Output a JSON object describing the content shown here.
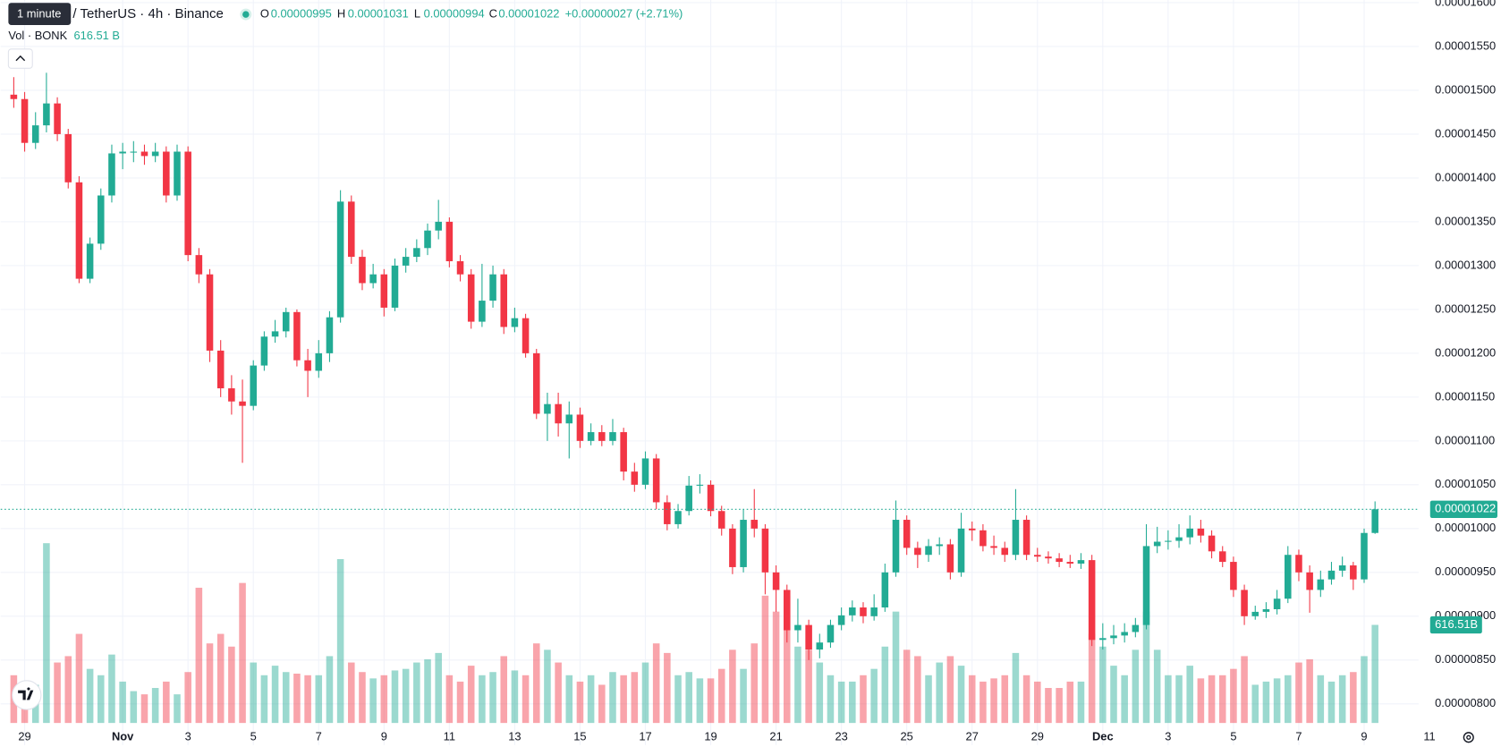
{
  "chart_data": {
    "type": "candlestick",
    "title": "/ TetherUS · 4h · Binance",
    "tooltip": "1 minute",
    "ohlc_labels": [
      "O",
      "H",
      "L",
      "C"
    ],
    "change": "+0.00000027 (+2.71%)",
    "volume_title": "Vol · BONK",
    "volume_legend_label": "616.51 B",
    "volume_axis_label": "616.51B",
    "up_color": "#22ab94",
    "down_color": "#f23645",
    "grid": true,
    "xlim": [
      -1.2,
      129
    ],
    "ylim": [
      7.53e-06,
      1.603e-05
    ],
    "xticks": [
      {
        "value": 1,
        "label": "29"
      },
      {
        "value": 10,
        "label": "Nov"
      },
      {
        "value": 16,
        "label": "3"
      },
      {
        "value": 22,
        "label": "5"
      },
      {
        "value": 28,
        "label": "7"
      },
      {
        "value": 34,
        "label": "9"
      },
      {
        "value": 40,
        "label": "11"
      },
      {
        "value": 46,
        "label": "13"
      },
      {
        "value": 52,
        "label": "15"
      },
      {
        "value": 58,
        "label": "17"
      },
      {
        "value": 64,
        "label": "19"
      },
      {
        "value": 70,
        "label": "21"
      },
      {
        "value": 76,
        "label": "23"
      },
      {
        "value": 82,
        "label": "25"
      },
      {
        "value": 88,
        "label": "27"
      },
      {
        "value": 94,
        "label": "29"
      },
      {
        "value": 100,
        "label": "Dec"
      },
      {
        "value": 106,
        "label": "3"
      },
      {
        "value": 112,
        "label": "5"
      },
      {
        "value": 118,
        "label": "7"
      },
      {
        "value": 124,
        "label": "9"
      },
      {
        "value": 130,
        "label": "11"
      }
    ],
    "yticks": [
      {
        "value": 8e-06,
        "label": "0.00000800"
      },
      {
        "value": 8.5e-06,
        "label": "0.00000850"
      },
      {
        "value": 9e-06,
        "label": "0.00000900"
      },
      {
        "value": 9.5e-06,
        "label": "0.00000950"
      },
      {
        "value": 1e-05,
        "label": "0.00001000"
      },
      {
        "value": 1.05e-05,
        "label": "0.00001050"
      },
      {
        "value": 1.1e-05,
        "label": "0.00001100"
      },
      {
        "value": 1.15e-05,
        "label": "0.00001150"
      },
      {
        "value": 1.2e-05,
        "label": "0.00001200"
      },
      {
        "value": 1.25e-05,
        "label": "0.00001250"
      },
      {
        "value": 1.3e-05,
        "label": "0.00001300"
      },
      {
        "value": 1.35e-05,
        "label": "0.00001350"
      },
      {
        "value": 1.4e-05,
        "label": "0.00001400"
      },
      {
        "value": 1.45e-05,
        "label": "0.00001450"
      },
      {
        "value": 1.5e-05,
        "label": "0.00001500"
      },
      {
        "value": 1.55e-05,
        "label": "0.00001550"
      },
      {
        "value": 1.6e-05,
        "label": "0.00001600"
      }
    ],
    "candles": [
      [
        1.495e-05,
        1.515e-05,
        1.48e-05,
        1.49e-05
      ],
      [
        1.49e-05,
        1.498e-05,
        1.43e-05,
        1.44e-05
      ],
      [
        1.44e-05,
        1.475e-05,
        1.433e-05,
        1.46e-05
      ],
      [
        1.46e-05,
        1.52e-05,
        1.452e-05,
        1.485e-05
      ],
      [
        1.485e-05,
        1.492e-05,
        1.442e-05,
        1.45e-05
      ],
      [
        1.45e-05,
        1.456e-05,
        1.388e-05,
        1.395e-05
      ],
      [
        1.395e-05,
        1.402e-05,
        1.28e-05,
        1.285e-05
      ],
      [
        1.285e-05,
        1.332e-05,
        1.28e-05,
        1.325e-05
      ],
      [
        1.325e-05,
        1.388e-05,
        1.318e-05,
        1.38e-05
      ],
      [
        1.38e-05,
        1.438e-05,
        1.372e-05,
        1.428e-05
      ],
      [
        1.428e-05,
        1.44e-05,
        1.41e-05,
        1.43e-05
      ],
      [
        1.43e-05,
        1.442e-05,
        1.418e-05,
        1.43e-05
      ],
      [
        1.43e-05,
        1.438e-05,
        1.415e-05,
        1.425e-05
      ],
      [
        1.425e-05,
        1.44e-05,
        1.418e-05,
        1.43e-05
      ],
      [
        1.43e-05,
        1.436e-05,
        1.372e-05,
        1.38e-05
      ],
      [
        1.38e-05,
        1.438e-05,
        1.374e-05,
        1.43e-05
      ],
      [
        1.43e-05,
        1.436e-05,
        1.305e-05,
        1.312e-05
      ],
      [
        1.312e-05,
        1.32e-05,
        1.28e-05,
        1.29e-05
      ],
      [
        1.29e-05,
        1.296e-05,
        1.19e-05,
        1.203e-05
      ],
      [
        1.203e-05,
        1.215e-05,
        1.15e-05,
        1.16e-05
      ],
      [
        1.16e-05,
        1.175e-05,
        1.13e-05,
        1.145e-05
      ],
      [
        1.145e-05,
        1.17e-05,
        1.075e-05,
        1.14e-05
      ],
      [
        1.14e-05,
        1.192e-05,
        1.135e-05,
        1.186e-05
      ],
      [
        1.186e-05,
        1.225e-05,
        1.18e-05,
        1.219e-05
      ],
      [
        1.219e-05,
        1.238e-05,
        1.212e-05,
        1.225e-05
      ],
      [
        1.225e-05,
        1.252e-05,
        1.218e-05,
        1.247e-05
      ],
      [
        1.247e-05,
        1.25e-05,
        1.185e-05,
        1.192e-05
      ],
      [
        1.192e-05,
        1.205e-05,
        1.15e-05,
        1.18e-05
      ],
      [
        1.18e-05,
        1.215e-05,
        1.172e-05,
        1.2e-05
      ],
      [
        1.2e-05,
        1.248e-05,
        1.19e-05,
        1.241e-05
      ],
      [
        1.241e-05,
        1.386e-05,
        1.235e-05,
        1.373e-05
      ],
      [
        1.373e-05,
        1.38e-05,
        1.302e-05,
        1.31e-05
      ],
      [
        1.31e-05,
        1.318e-05,
        1.272e-05,
        1.28e-05
      ],
      [
        1.28e-05,
        1.302e-05,
        1.274e-05,
        1.29e-05
      ],
      [
        1.29e-05,
        1.296e-05,
        1.242e-05,
        1.252e-05
      ],
      [
        1.252e-05,
        1.308e-05,
        1.248e-05,
        1.3e-05
      ],
      [
        1.3e-05,
        1.32e-05,
        1.292e-05,
        1.31e-05
      ],
      [
        1.31e-05,
        1.33e-05,
        1.304e-05,
        1.32e-05
      ],
      [
        1.32e-05,
        1.348e-05,
        1.312e-05,
        1.34e-05
      ],
      [
        1.34e-05,
        1.375e-05,
        1.33e-05,
        1.35e-05
      ],
      [
        1.35e-05,
        1.355e-05,
        1.298e-05,
        1.305e-05
      ],
      [
        1.305e-05,
        1.312e-05,
        1.282e-05,
        1.29e-05
      ],
      [
        1.29e-05,
        1.296e-05,
        1.228e-05,
        1.236e-05
      ],
      [
        1.236e-05,
        1.302e-05,
        1.23e-05,
        1.26e-05
      ],
      [
        1.26e-05,
        1.3e-05,
        1.252e-05,
        1.29e-05
      ],
      [
        1.29e-05,
        1.296e-05,
        1.222e-05,
        1.23e-05
      ],
      [
        1.23e-05,
        1.252e-05,
        1.224e-05,
        1.24e-05
      ],
      [
        1.24e-05,
        1.245e-05,
        1.195e-05,
        1.2e-05
      ],
      [
        1.2e-05,
        1.205e-05,
        1.125e-05,
        1.131e-05
      ],
      [
        1.131e-05,
        1.155e-05,
        1.1e-05,
        1.142e-05
      ],
      [
        1.142e-05,
        1.155e-05,
        1.105e-05,
        1.12e-05
      ],
      [
        1.12e-05,
        1.145e-05,
        1.08e-05,
        1.13e-05
      ],
      [
        1.13e-05,
        1.138e-05,
        1.092e-05,
        1.1e-05
      ],
      [
        1.1e-05,
        1.12e-05,
        1.095e-05,
        1.11e-05
      ],
      [
        1.11e-05,
        1.118e-05,
        1.094e-05,
        1.1e-05
      ],
      [
        1.1e-05,
        1.125e-05,
        1.095e-05,
        1.11e-05
      ],
      [
        1.11e-05,
        1.115e-05,
        1.055e-05,
        1.065e-05
      ],
      [
        1.065e-05,
        1.075e-05,
        1.042e-05,
        1.05e-05
      ],
      [
        1.05e-05,
        1.088e-05,
        1.045e-05,
        1.08e-05
      ],
      [
        1.08e-05,
        1.085e-05,
        1.022e-05,
        1.03e-05
      ],
      [
        1.03e-05,
        1.038e-05,
        9.98e-06,
        1.005e-05
      ],
      [
        1.005e-05,
        1.028e-05,
        1e-05,
        1.02e-05
      ],
      [
        1.02e-05,
        1.06e-05,
        1.015e-05,
        1.049e-05
      ],
      [
        1.049e-05,
        1.062e-05,
        1.04e-05,
        1.05e-05
      ],
      [
        1.05e-05,
        1.055e-05,
        1.014e-05,
        1.02e-05
      ],
      [
        1.02e-05,
        1.026e-05,
        9.92e-06,
        1e-05
      ],
      [
        1e-05,
        1.005e-05,
        9.48e-06,
        9.56e-06
      ],
      [
        9.56e-06,
        1.022e-05,
        9.5e-06,
        1.01e-05
      ],
      [
        1.01e-05,
        1.045e-05,
        9.9e-06,
        1e-05
      ],
      [
        1e-05,
        1.005e-05,
        9.25e-06,
        9.5e-06
      ],
      [
        9.5e-06,
        9.58e-06,
        9.05e-06,
        9.3e-06
      ],
      [
        9.3e-06,
        9.36e-06,
        8.7e-06,
        8.84e-06
      ],
      [
        8.84e-06,
        9.2e-06,
        8.7e-06,
        8.9e-06
      ],
      [
        8.9e-06,
        8.96e-06,
        8.5e-06,
        8.62e-06
      ],
      [
        8.62e-06,
        8.8e-06,
        8.52e-06,
        8.7e-06
      ],
      [
        8.7e-06,
        8.96e-06,
        8.64e-06,
        8.9e-06
      ],
      [
        8.9e-06,
        9.1e-06,
        8.84e-06,
        9.01e-06
      ],
      [
        9.01e-06,
        9.18e-06,
        8.94e-06,
        9.1e-06
      ],
      [
        9.1e-06,
        9.16e-06,
        8.92e-06,
        9e-06
      ],
      [
        9e-06,
        9.25e-06,
        8.95e-06,
        9.1e-06
      ],
      [
        9.1e-06,
        9.6e-06,
        9.05e-06,
        9.5e-06
      ],
      [
        9.5e-06,
        1.032e-05,
        9.45e-06,
        1.01e-05
      ],
      [
        1.01e-05,
        1.015e-05,
        9.7e-06,
        9.78e-06
      ],
      [
        9.78e-06,
        9.85e-06,
        9.55e-06,
        9.7e-06
      ],
      [
        9.7e-06,
        9.88e-06,
        9.62e-06,
        9.8e-06
      ],
      [
        9.8e-06,
        9.9e-06,
        9.7e-06,
        9.82e-06
      ],
      [
        9.82e-06,
        9.88e-06,
        9.42e-06,
        9.5e-06
      ],
      [
        9.5e-06,
        1.018e-05,
        9.45e-06,
        1e-05
      ],
      [
        1e-05,
        1.008e-05,
        9.86e-06,
        9.98e-06
      ],
      [
        9.98e-06,
        1.005e-05,
        9.74e-06,
        9.8e-06
      ],
      [
        9.8e-06,
        9.92e-06,
        9.7e-06,
        9.78e-06
      ],
      [
        9.78e-06,
        9.85e-06,
        9.62e-06,
        9.7e-06
      ],
      [
        9.7e-06,
        1.045e-05,
        9.64e-06,
        1.01e-05
      ],
      [
        1.01e-05,
        1.015e-05,
        9.64e-06,
        9.7e-06
      ],
      [
        9.7e-06,
        9.78e-06,
        9.62e-06,
        9.68e-06
      ],
      [
        9.68e-06,
        9.74e-06,
        9.6e-06,
        9.66e-06
      ],
      [
        9.66e-06,
        9.72e-06,
        9.56e-06,
        9.62e-06
      ],
      [
        9.62e-06,
        9.7e-06,
        9.55e-06,
        9.6e-06
      ],
      [
        9.6e-06,
        9.72e-06,
        9.54e-06,
        9.64e-06
      ],
      [
        9.64e-06,
        9.7e-06,
        8.66e-06,
        8.73e-06
      ],
      [
        8.73e-06,
        8.92e-06,
        8.62e-06,
        8.75e-06
      ],
      [
        8.75e-06,
        8.9e-06,
        8.68e-06,
        8.78e-06
      ],
      [
        8.78e-06,
        8.92e-06,
        8.7e-06,
        8.82e-06
      ],
      [
        8.82e-06,
        8.98e-06,
        8.76e-06,
        8.9e-06
      ],
      [
        8.9e-06,
        1.005e-05,
        8.85e-06,
        9.8e-06
      ],
      [
        9.8e-06,
        1.002e-05,
        9.72e-06,
        9.85e-06
      ],
      [
        9.85e-06,
        9.98e-06,
        9.76e-06,
        9.86e-06
      ],
      [
        9.86e-06,
        1.005e-05,
        9.78e-06,
        9.9e-06
      ],
      [
        9.9e-06,
        1.015e-05,
        9.82e-06,
        1e-05
      ],
      [
        1e-05,
        1.01e-05,
        9.84e-06,
        9.92e-06
      ],
      [
        9.92e-06,
        9.98e-06,
        9.66e-06,
        9.74e-06
      ],
      [
        9.74e-06,
        9.8e-06,
        9.56e-06,
        9.62e-06
      ],
      [
        9.62e-06,
        9.68e-06,
        9.22e-06,
        9.3e-06
      ],
      [
        9.3e-06,
        9.36e-06,
        8.9e-06,
        9e-06
      ],
      [
        9e-06,
        9.12e-06,
        8.96e-06,
        9.05e-06
      ],
      [
        9.05e-06,
        9.16e-06,
        8.98e-06,
        9.08e-06
      ],
      [
        9.08e-06,
        9.3e-06,
        9.02e-06,
        9.2e-06
      ],
      [
        9.2e-06,
        9.8e-06,
        9.15e-06,
        9.7e-06
      ],
      [
        9.7e-06,
        9.76e-06,
        9.4e-06,
        9.5e-06
      ],
      [
        9.5e-06,
        9.58e-06,
        9.04e-06,
        9.3e-06
      ],
      [
        9.3e-06,
        9.52e-06,
        9.22e-06,
        9.42e-06
      ],
      [
        9.42e-06,
        9.62e-06,
        9.36e-06,
        9.52e-06
      ],
      [
        9.52e-06,
        9.68e-06,
        9.45e-06,
        9.58e-06
      ],
      [
        9.58e-06,
        9.62e-06,
        9.3e-06,
        9.42e-06
      ],
      [
        9.42e-06,
        1e-05,
        9.38e-06,
        9.95e-06
      ],
      [
        9.95e-06,
        1.031e-05,
        9.94e-06,
        1.022e-05
      ]
    ],
    "volumes": [
      300,
      250,
      240,
      1130,
      380,
      420,
      560,
      340,
      300,
      430,
      260,
      200,
      180,
      220,
      260,
      180,
      320,
      850,
      500,
      560,
      480,
      880,
      380,
      300,
      360,
      320,
      310,
      300,
      300,
      420,
      1030,
      380,
      320,
      280,
      300,
      330,
      340,
      380,
      400,
      440,
      300,
      260,
      360,
      300,
      320,
      420,
      330,
      300,
      500,
      460,
      380,
      300,
      260,
      300,
      240,
      320,
      300,
      320,
      380,
      500,
      440,
      300,
      320,
      280,
      280,
      340,
      460,
      340,
      500,
      800,
      700,
      800,
      480,
      460,
      380,
      300,
      260,
      260,
      300,
      340,
      480,
      700,
      460,
      420,
      300,
      380,
      420,
      360,
      300,
      260,
      280,
      300,
      440,
      300,
      260,
      220,
      220,
      260,
      260,
      560,
      480,
      360,
      300,
      460,
      700,
      460,
      300,
      300,
      360,
      280,
      300,
      300,
      340,
      420,
      240,
      260,
      280,
      300,
      380,
      400,
      300,
      260,
      300,
      320,
      420,
      616.51
    ]
  }
}
